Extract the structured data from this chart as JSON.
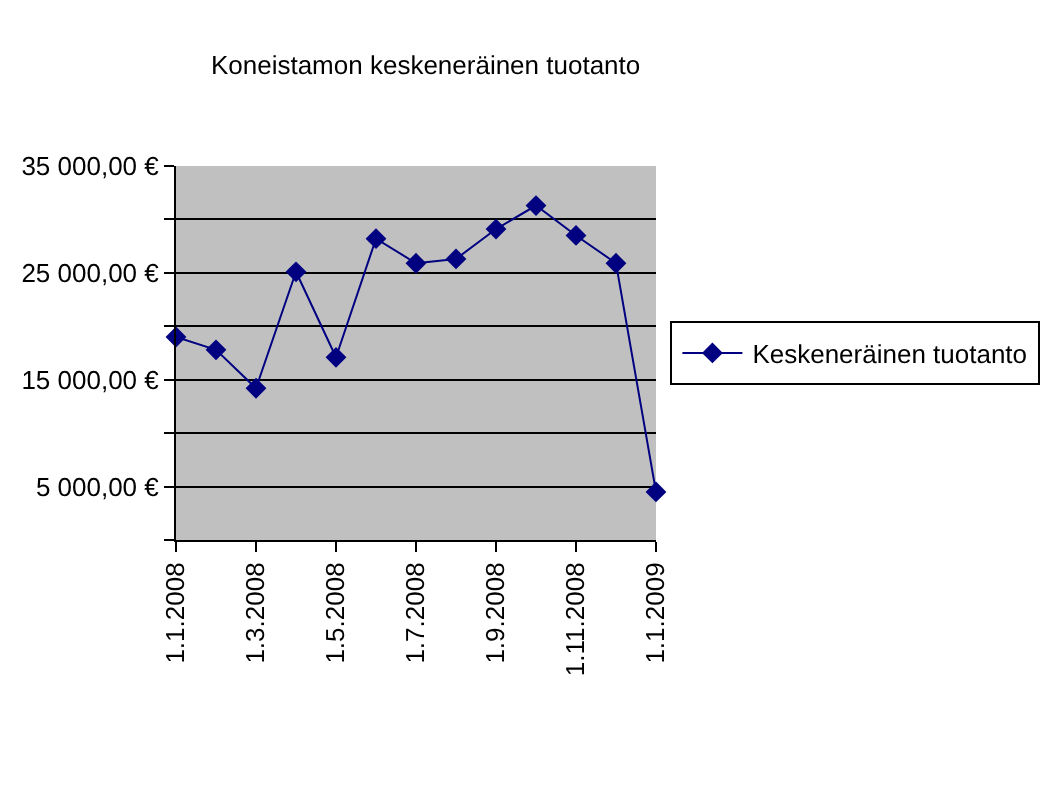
{
  "chart_data": {
    "type": "line",
    "title": "Koneistamon keskeneräinen tuotanto",
    "categories": [
      "1.1.2008",
      null,
      "1.3.2008",
      null,
      "1.5.2008",
      null,
      "1.7.2008",
      null,
      "1.9.2008",
      null,
      "1.11.2008",
      null,
      "1.1.2009"
    ],
    "series": [
      {
        "name": "Keskeneräinen tuotanto",
        "color": "#000080",
        "values": [
          19000,
          17800,
          14200,
          25100,
          17100,
          28200,
          25900,
          26300,
          29100,
          31300,
          28500,
          25900,
          4500
        ]
      }
    ],
    "ylim": [
      0,
      35000
    ],
    "yticks": [
      {
        "value": 0,
        "label": null
      },
      {
        "value": 5000,
        "label": "5 000,00 €"
      },
      {
        "value": 10000,
        "label": null
      },
      {
        "value": 15000,
        "label": "15 000,00 €"
      },
      {
        "value": 20000,
        "label": null
      },
      {
        "value": 25000,
        "label": "25 000,00 €"
      },
      {
        "value": 30000,
        "label": null
      },
      {
        "value": 35000,
        "label": "35 000,00 €"
      }
    ],
    "grid": "y",
    "legend": "right",
    "marker": "diamond",
    "line_style": "solid"
  }
}
